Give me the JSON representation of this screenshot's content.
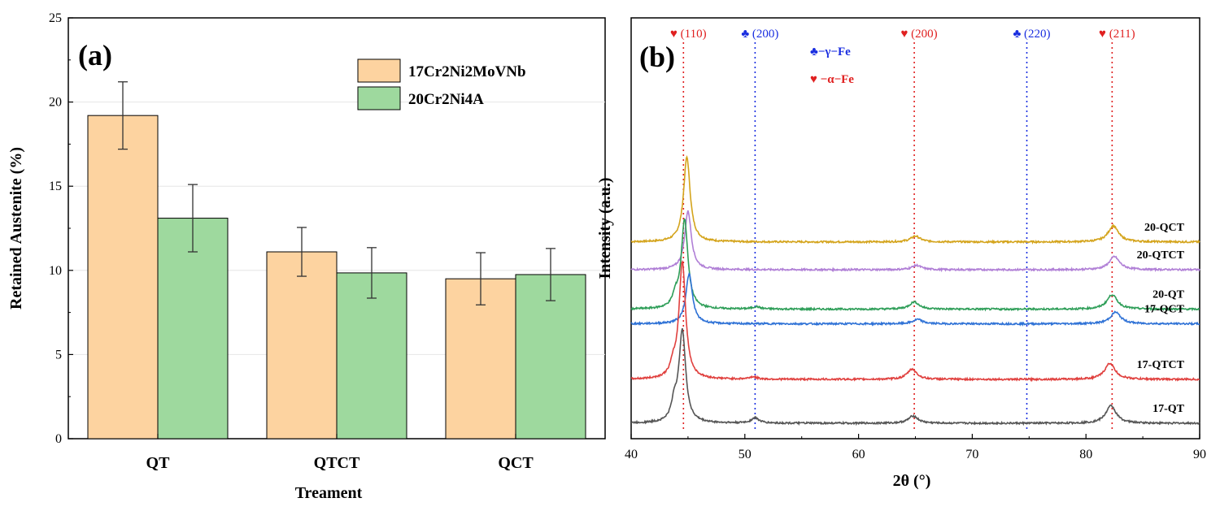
{
  "chart_data": [
    {
      "type": "bar",
      "panel_label": "(a)",
      "xlabel": "Treament",
      "ylabel": "Retained Austenite (%)",
      "ylim": [
        0,
        25
      ],
      "yticks": [
        "0",
        "5",
        "10",
        "15",
        "20",
        "25"
      ],
      "categories": [
        "QT",
        "QTCT",
        "QCT"
      ],
      "series": [
        {
          "name": "17Cr2Ni2MoVNb",
          "color": "#fdd3a0",
          "values": [
            19.2,
            11.1,
            9.5
          ],
          "errors": [
            2.0,
            1.45,
            1.55
          ]
        },
        {
          "name": "20Cr2Ni4A",
          "color": "#9ed99e",
          "values": [
            13.1,
            9.85,
            9.75
          ],
          "errors": [
            2.0,
            1.5,
            1.55
          ]
        }
      ],
      "legend": "top-right"
    },
    {
      "type": "line",
      "panel_label": "(b)",
      "xlabel": "2θ (°)",
      "ylabel": "Intensity (a.u.)",
      "xlim": [
        40,
        90
      ],
      "xticks": [
        "40",
        "50",
        "60",
        "70",
        "80",
        "90"
      ],
      "series": [
        {
          "name": "20-QCT",
          "color": "#d4a41c",
          "offset": 6.2,
          "peaks": [
            [
              44.9,
              2.9,
              0.35
            ],
            [
              65.0,
              0.2,
              0.5
            ],
            [
              82.4,
              0.55,
              0.55
            ]
          ]
        },
        {
          "name": "20-QTCT",
          "color": "#b07fd6",
          "offset": 5.25,
          "peaks": [
            [
              45.0,
              2.0,
              0.35
            ],
            [
              65.1,
              0.15,
              0.5
            ],
            [
              82.5,
              0.45,
              0.55
            ]
          ]
        },
        {
          "name": "20-QT",
          "color": "#2e9e58",
          "offset": 3.9,
          "peaks": [
            [
              43.9,
              0.35,
              0.3
            ],
            [
              44.7,
              3.05,
              0.35
            ],
            [
              51.0,
              0.08,
              0.4
            ],
            [
              64.9,
              0.25,
              0.5
            ],
            [
              82.3,
              0.5,
              0.55
            ]
          ]
        },
        {
          "name": "17-QCT",
          "color": "#2f72d6",
          "offset": 3.4,
          "peaks": [
            [
              45.1,
              1.7,
              0.35
            ],
            [
              65.2,
              0.15,
              0.5
            ],
            [
              82.6,
              0.4,
              0.55
            ]
          ]
        },
        {
          "name": "17-QTCT",
          "color": "#e0403e",
          "offset": 1.5,
          "peaks": [
            [
              43.7,
              0.35,
              0.3
            ],
            [
              44.5,
              4.0,
              0.35
            ],
            [
              50.7,
              0.08,
              0.4
            ],
            [
              64.7,
              0.35,
              0.5
            ],
            [
              82.1,
              0.55,
              0.55
            ]
          ]
        },
        {
          "name": "17-QT",
          "color": "#555555",
          "offset": 0.0,
          "peaks": [
            [
              43.8,
              0.6,
              0.3
            ],
            [
              44.5,
              3.15,
              0.35
            ],
            [
              50.9,
              0.18,
              0.4
            ],
            [
              64.8,
              0.25,
              0.5
            ],
            [
              82.2,
              0.6,
              0.55
            ]
          ]
        }
      ],
      "reference_lines": [
        {
          "x": 44.6,
          "phase": "alpha",
          "label": "♥ (110)",
          "color": "#e02020"
        },
        {
          "x": 50.9,
          "phase": "gamma",
          "label": "♣ (200)",
          "color": "#1a2ee0"
        },
        {
          "x": 64.9,
          "phase": "alpha",
          "label": "♥ (200)",
          "color": "#e02020"
        },
        {
          "x": 74.8,
          "phase": "gamma",
          "label": "♣ (220)",
          "color": "#1a2ee0"
        },
        {
          "x": 82.3,
          "phase": "alpha",
          "label": "♥ (211)",
          "color": "#e02020"
        }
      ],
      "phase_legend": [
        {
          "label": "♣−γ−Fe",
          "color": "#1a2ee0"
        },
        {
          "label": "♥ −α−Fe",
          "color": "#e02020"
        }
      ]
    }
  ]
}
